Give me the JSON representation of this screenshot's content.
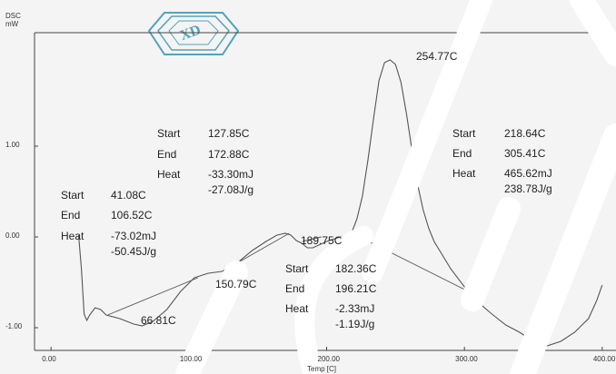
{
  "chart_data": {
    "type": "line",
    "yaxis_title": "DSC",
    "yaxis_unit": "mW",
    "xlabel": "Temp [C]",
    "xlim": [
      -12,
      410
    ],
    "ylim": [
      -1.25,
      2.25
    ],
    "x_ticks": [
      {
        "value": 0,
        "label": "0.00"
      },
      {
        "value": 100,
        "label": "100.00"
      },
      {
        "value": 200,
        "label": "200.00"
      },
      {
        "value": 300,
        "label": "300.00"
      },
      {
        "value": 400,
        "label": "400.00"
      }
    ],
    "y_ticks": [
      {
        "value": 1,
        "label": "1.00"
      },
      {
        "value": 0,
        "label": "0.00"
      },
      {
        "value": -1,
        "label": "-1.00"
      }
    ],
    "series": [
      {
        "x": [
          20,
          22,
          24,
          26,
          28,
          32,
          36,
          40,
          50,
          60,
          66,
          74,
          84,
          94,
          104,
          114,
          124,
          134,
          146,
          156,
          164,
          170,
          174,
          178,
          182,
          186,
          190,
          200,
          210,
          218,
          222,
          226,
          230,
          234,
          238,
          242,
          246,
          250,
          254,
          258,
          262,
          266,
          270,
          274,
          278,
          282,
          290,
          300,
          310,
          320,
          330,
          340,
          350,
          360,
          370,
          380,
          390,
          396,
          400
        ],
        "y": [
          0.02,
          -0.35,
          -0.85,
          -0.92,
          -0.86,
          -0.78,
          -0.8,
          -0.86,
          -0.9,
          -0.96,
          -0.98,
          -0.93,
          -0.8,
          -0.6,
          -0.45,
          -0.4,
          -0.38,
          -0.3,
          -0.15,
          -0.05,
          0.02,
          0.04,
          0.02,
          -0.04,
          -0.07,
          -0.12,
          -0.12,
          -0.05,
          0.0,
          0.04,
          0.2,
          0.45,
          0.85,
          1.3,
          1.72,
          1.92,
          1.95,
          1.9,
          1.7,
          1.35,
          0.95,
          0.58,
          0.3,
          0.1,
          -0.05,
          -0.15,
          -0.35,
          -0.55,
          -0.72,
          -0.85,
          -0.97,
          -1.05,
          -1.15,
          -1.2,
          -1.15,
          -1.05,
          -0.9,
          -0.7,
          -0.53
        ]
      }
    ],
    "baselines": [
      {
        "x": [
          41.08,
          106.52
        ],
        "y": [
          -0.86,
          -0.45
        ]
      },
      {
        "x": [
          127.85,
          172.88
        ],
        "y": [
          -0.35,
          0.04
        ]
      },
      {
        "x": [
          182.36,
          196.21
        ],
        "y": [
          -0.05,
          0.0
        ]
      },
      {
        "x": [
          218.64,
          305.41
        ],
        "y": [
          0.04,
          -0.62
        ]
      }
    ],
    "annotations": [
      {
        "text": "254.77C",
        "x": 254.77,
        "y": 1.95
      },
      {
        "text": "189.75C",
        "x": 189.75,
        "y": -0.12
      },
      {
        "text": "150.79C",
        "x": 150.79,
        "y": -0.6
      },
      {
        "text": "66.81C",
        "x": 66.81,
        "y": -0.98
      }
    ],
    "event_tables": [
      {
        "start_label": "Start",
        "start_value": "41.08C",
        "end_label": "End",
        "end_value": "106.52C",
        "heat_label": "Heat",
        "heat_value": "-73.02mJ",
        "heat_per_gram": "-50.45J/g"
      },
      {
        "start_label": "Start",
        "start_value": "127.85C",
        "end_label": "End",
        "end_value": "172.88C",
        "heat_label": "Heat",
        "heat_value": "-33.30mJ",
        "heat_per_gram": "-27.08J/g"
      },
      {
        "start_label": "Start",
        "start_value": "182.36C",
        "end_label": "End",
        "end_value": "196.21C",
        "heat_label": "Heat",
        "heat_value": "-2.33mJ",
        "heat_per_gram": "-1.19J/g"
      },
      {
        "start_label": "Start",
        "start_value": "218.64C",
        "end_label": "End",
        "end_value": "305.41C",
        "heat_label": "Heat",
        "heat_value": "465.62mJ",
        "heat_per_gram": "238.78J/g"
      }
    ],
    "colors": {
      "line": "#555555",
      "frame": "#444444",
      "watermark": "#2a8fb0",
      "overlay": "#ffffff"
    }
  }
}
